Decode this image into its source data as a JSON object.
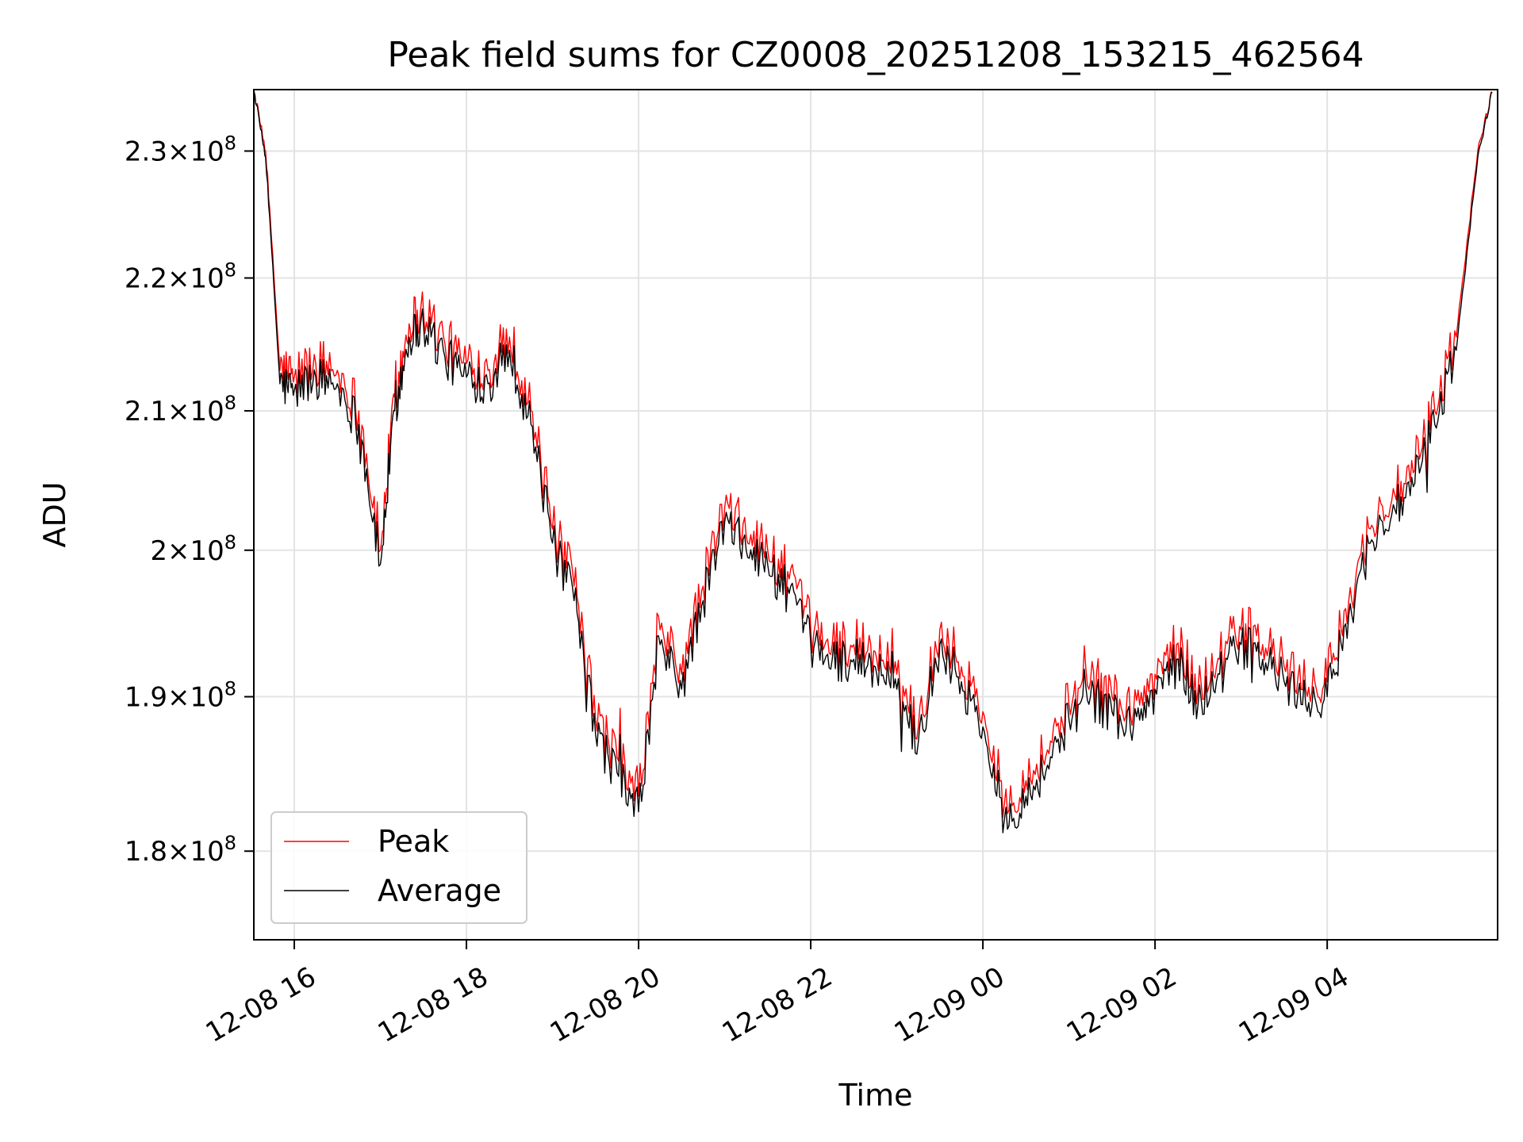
{
  "chart_data": {
    "type": "line",
    "title": "Peak field sums for CZ0008_20251208_153215_462564",
    "xlabel": "Time",
    "ylabel": "ADU",
    "yscale": "log",
    "grid": true,
    "legend_position": "lower-left",
    "x_range_hours": [
      15.53,
      5.98
    ],
    "ylim": [
      174500000,
      235000000
    ],
    "x_ticks": [
      {
        "hour": 16,
        "label": "12-08 16"
      },
      {
        "hour": 18,
        "label": "12-08 18"
      },
      {
        "hour": 20,
        "label": "12-08 20"
      },
      {
        "hour": 22,
        "label": "12-08 22"
      },
      {
        "hour": 0,
        "label": "12-09 00"
      },
      {
        "hour": 2,
        "label": "12-09 02"
      },
      {
        "hour": 4,
        "label": "12-09 04"
      }
    ],
    "y_ticks": [
      {
        "value": 180000000,
        "mantissa": "1.8",
        "exponent": "8"
      },
      {
        "value": 190000000,
        "mantissa": "1.9",
        "exponent": "8"
      },
      {
        "value": 200000000,
        "mantissa": "2",
        "exponent": "8"
      },
      {
        "value": 210000000,
        "mantissa": "2.1",
        "exponent": "8"
      },
      {
        "value": 220000000,
        "mantissa": "2.2",
        "exponent": "8"
      },
      {
        "value": 230000000,
        "mantissa": "2.3",
        "exponent": "8"
      }
    ],
    "times_of_day": [
      "15:32",
      "15:40",
      "15:50",
      "16:00",
      "16:15",
      "16:30",
      "16:45",
      "17:00",
      "17:10",
      "17:20",
      "17:30",
      "17:45",
      "18:00",
      "18:15",
      "18:30",
      "18:45",
      "19:00",
      "19:15",
      "19:30",
      "19:45",
      "20:00",
      "20:15",
      "20:30",
      "20:45",
      "21:00",
      "21:15",
      "21:30",
      "21:45",
      "22:00",
      "22:15",
      "22:30",
      "22:45",
      "23:00",
      "23:15",
      "23:30",
      "23:45",
      "00:00",
      "00:15",
      "00:30",
      "00:45",
      "01:00",
      "01:15",
      "01:30",
      "01:45",
      "02:00",
      "02:15",
      "02:30",
      "02:45",
      "03:00",
      "03:15",
      "03:30",
      "03:45",
      "04:00",
      "04:15",
      "04:30",
      "04:45",
      "05:00",
      "05:15",
      "05:30",
      "05:45",
      "05:55"
    ],
    "series": [
      {
        "name": "Peak",
        "color": "#ff0000",
        "values": [
          234800000,
          230000000,
          213000000,
          212500000,
          213500000,
          213000000,
          210000000,
          200000000,
          211000000,
          216500000,
          217500000,
          215000000,
          213500000,
          213000000,
          215500000,
          210000000,
          201500000,
          197500000,
          188500000,
          186000000,
          183500000,
          194500000,
          191500000,
          197500000,
          203000000,
          201000000,
          200000000,
          198000000,
          194500000,
          193500000,
          193500000,
          193000000,
          191500000,
          188000000,
          194500000,
          192000000,
          189000000,
          183000000,
          184500000,
          186500000,
          189500000,
          191000000,
          190000000,
          189000000,
          191500000,
          193500000,
          190500000,
          192500000,
          194500000,
          193500000,
          192000000,
          190500000,
          191000000,
          196500000,
          201500000,
          203500000,
          205500000,
          210000000,
          215500000,
          230000000,
          234800000
        ]
      },
      {
        "name": "Average",
        "color": "#000000",
        "values": [
          234800000,
          229500000,
          212000000,
          211500000,
          212500000,
          212000000,
          209000000,
          199000000,
          210000000,
          215500000,
          216500000,
          214000000,
          212500000,
          212000000,
          214500000,
          209000000,
          200500000,
          196500000,
          187500000,
          185000000,
          182500000,
          193500000,
          190500000,
          196500000,
          202000000,
          200000000,
          199000000,
          197000000,
          193500000,
          192500000,
          192500000,
          192000000,
          190500000,
          187000000,
          193500000,
          191000000,
          188000000,
          182000000,
          183500000,
          185500000,
          188500000,
          190000000,
          189000000,
          188000000,
          190500000,
          192500000,
          189500000,
          191500000,
          193500000,
          192500000,
          191000000,
          189500000,
          190000000,
          195500000,
          200500000,
          202500000,
          204500000,
          209000000,
          214500000,
          229500000,
          234800000
        ]
      }
    ]
  }
}
